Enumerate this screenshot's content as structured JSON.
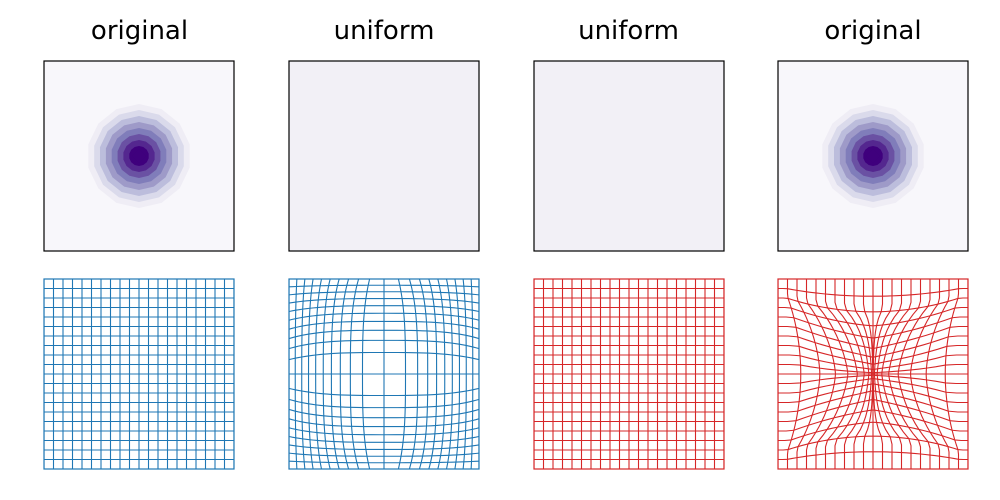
{
  "chart_data": [
    {
      "type": "heatmap",
      "title": "original",
      "colormap": "Purples",
      "field": "gaussian-blob",
      "levels": 9,
      "center": [
        0,
        0
      ],
      "axes_visible": false
    },
    {
      "type": "heatmap",
      "title": "uniform",
      "colormap": "Purples",
      "field": "uniform",
      "fill_color": "#f2f0f6",
      "axes_visible": false
    },
    {
      "type": "heatmap",
      "title": "uniform",
      "colormap": "Purples",
      "field": "uniform",
      "fill_color": "#f2f0f6",
      "axes_visible": false
    },
    {
      "type": "heatmap",
      "title": "original",
      "colormap": "Purples",
      "field": "gaussian-blob",
      "levels": 9,
      "center": [
        0,
        0
      ],
      "axes_visible": false
    },
    {
      "type": "grid",
      "grid_lines": 21,
      "transform": "identity",
      "line_color": "#1f77b4",
      "axes_visible": false
    },
    {
      "type": "grid",
      "grid_lines": 21,
      "transform": "spread-to-edges",
      "line_color": "#1f77b4",
      "axes_visible": false
    },
    {
      "type": "grid",
      "grid_lines": 21,
      "transform": "identity",
      "line_color": "#d62728",
      "axes_visible": false
    },
    {
      "type": "grid",
      "grid_lines": 21,
      "transform": "compress-to-center",
      "line_color": "#d62728",
      "axes_visible": false
    }
  ]
}
